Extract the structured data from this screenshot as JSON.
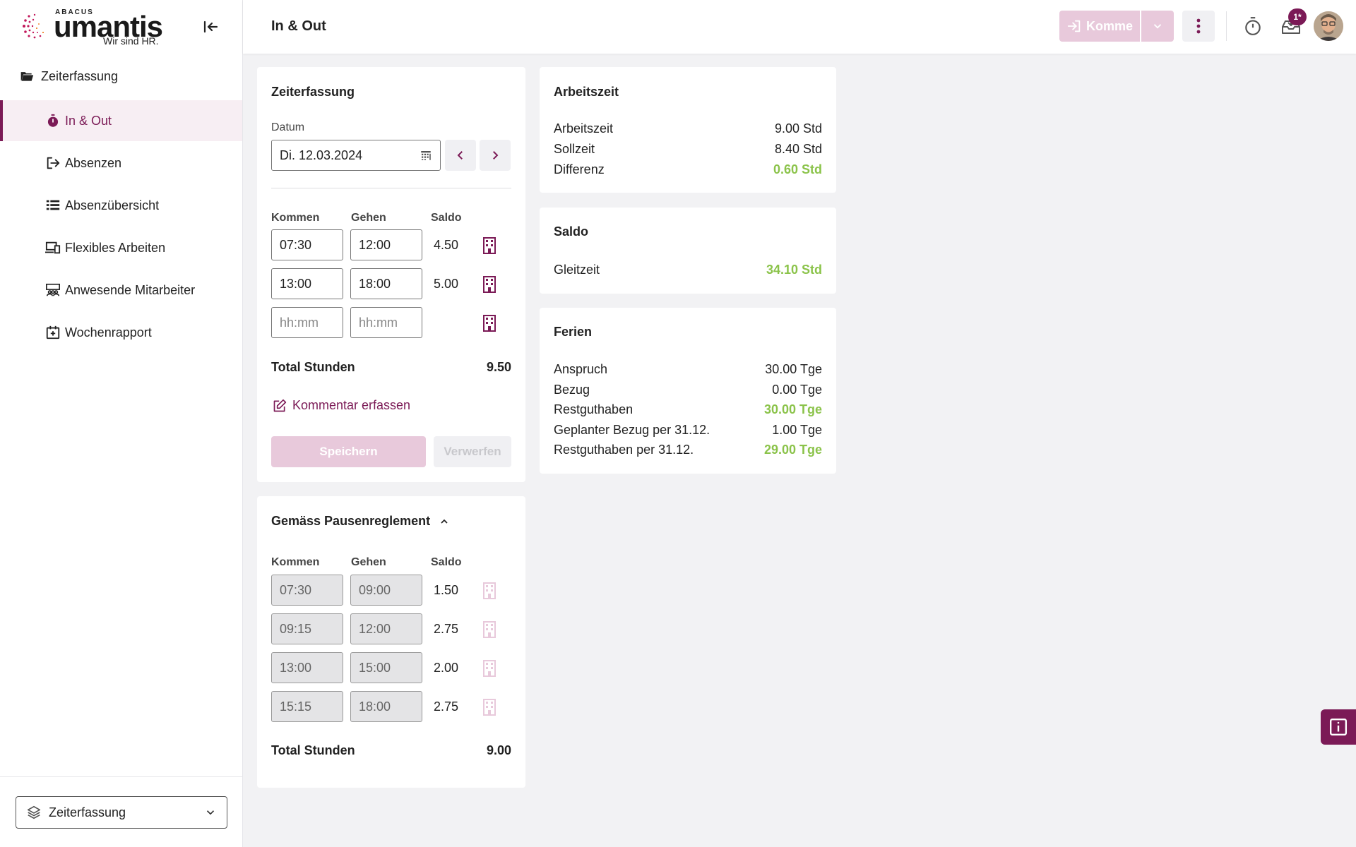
{
  "logo": {
    "brand_small": "ABACUS",
    "brand": "umantis",
    "tagline": "Wir sind HR."
  },
  "sidebar": {
    "group": {
      "label": "Zeiterfassung",
      "icon": "folder-open-icon"
    },
    "items": [
      {
        "label": "In & Out",
        "icon": "stopwatch-icon",
        "active": true
      },
      {
        "label": "Absenzen",
        "icon": "exit-icon"
      },
      {
        "label": "Absenzübersicht",
        "icon": "list-icon"
      },
      {
        "label": "Flexibles Arbeiten",
        "icon": "devices-icon"
      },
      {
        "label": "Anwesende Mitarbeiter",
        "icon": "team-icon"
      },
      {
        "label": "Wochenrapport",
        "icon": "calendar-plus-icon"
      }
    ],
    "module_select": {
      "value": "Zeiterfassung",
      "icon": "layers-icon"
    }
  },
  "header": {
    "title": "In & Out",
    "komme_label": "Komme",
    "badge": "1*"
  },
  "zeiterfassung": {
    "title": "Zeiterfassung",
    "datum_label": "Datum",
    "datum_value": "Di. 12.03.2024",
    "col_kommen": "Kommen",
    "col_gehen": "Gehen",
    "col_saldo": "Saldo",
    "rows": [
      {
        "kommen": "07:30",
        "gehen": "12:00",
        "saldo": "4.50"
      },
      {
        "kommen": "13:00",
        "gehen": "18:00",
        "saldo": "5.00"
      },
      {
        "kommen": "",
        "gehen": "",
        "saldo": ""
      }
    ],
    "placeholder": "hh:mm",
    "total_label": "Total Stunden",
    "total_value": "9.50",
    "comment_label": "Kommentar erfassen",
    "save_label": "Speichern",
    "discard_label": "Verwerfen"
  },
  "pausen": {
    "title": "Gemäss Pausenreglement",
    "col_kommen": "Kommen",
    "col_gehen": "Gehen",
    "col_saldo": "Saldo",
    "rows": [
      {
        "kommen": "07:30",
        "gehen": "09:00",
        "saldo": "1.50"
      },
      {
        "kommen": "09:15",
        "gehen": "12:00",
        "saldo": "2.75"
      },
      {
        "kommen": "13:00",
        "gehen": "15:00",
        "saldo": "2.00"
      },
      {
        "kommen": "15:15",
        "gehen": "18:00",
        "saldo": "2.75"
      }
    ],
    "total_label": "Total Stunden",
    "total_value": "9.00"
  },
  "arbeitszeit": {
    "title": "Arbeitszeit",
    "rows": [
      {
        "label": "Arbeitszeit",
        "value": "9.00 Std"
      },
      {
        "label": "Sollzeit",
        "value": "8.40 Std"
      },
      {
        "label": "Differenz",
        "value": "0.60 Std",
        "highlight": true
      }
    ]
  },
  "saldo": {
    "title": "Saldo",
    "rows": [
      {
        "label": "Gleitzeit",
        "value": "34.10 Std",
        "highlight": true
      }
    ]
  },
  "ferien": {
    "title": "Ferien",
    "rows": [
      {
        "label": "Anspruch",
        "value": "30.00 Tge"
      },
      {
        "label": "Bezug",
        "value": "0.00 Tge"
      },
      {
        "label": "Restguthaben",
        "value": "30.00 Tge",
        "highlight": true
      },
      {
        "label": "Geplanter Bezug per 31.12.",
        "value": "1.00 Tge"
      },
      {
        "label": "Restguthaben per 31.12.",
        "value": "29.00 Tge",
        "highlight": true
      }
    ]
  },
  "colors": {
    "accent": "#7b1a56",
    "accent_light": "#e8c9db",
    "positive": "#8bc34a"
  }
}
